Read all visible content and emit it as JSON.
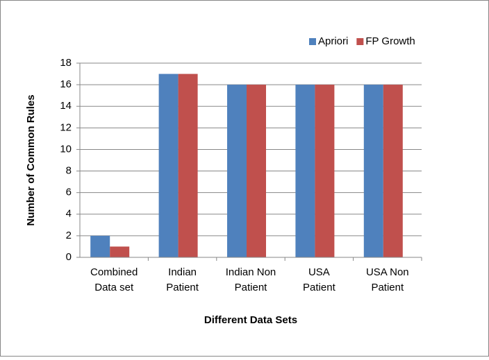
{
  "chart_data": {
    "type": "bar",
    "categories": [
      "Combined\nData set",
      "Indian\nPatient",
      "Indian Non\nPatient",
      "USA\nPatient",
      "USA Non\nPatient"
    ],
    "series": [
      {
        "name": "Apriori",
        "color": "#4f81bd",
        "values": [
          2,
          17,
          16,
          16,
          16
        ]
      },
      {
        "name": "FP Growth",
        "color": "#c0504d",
        "values": [
          1,
          17,
          16,
          16,
          16
        ]
      }
    ],
    "xlabel": "Different Data Sets",
    "ylabel": "Number of Common Rules",
    "ylim": [
      0,
      18
    ],
    "yticks": [
      0,
      2,
      4,
      6,
      8,
      10,
      12,
      14,
      16,
      18
    ],
    "grid": true,
    "legend": "top-right"
  }
}
